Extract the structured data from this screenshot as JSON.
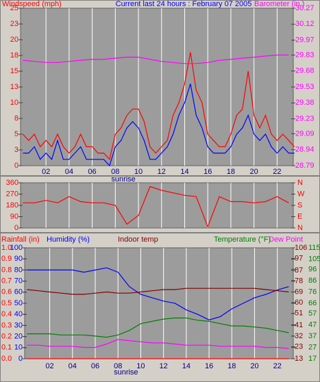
{
  "chart_data": [
    {
      "type": "line",
      "title": "Current last 24 hours : February 07 2005",
      "ylabel": "Windspeed (mph)",
      "y2label": "Barometer (in.)",
      "axis_colors": {
        "y": "#ff0000",
        "y2": "#ff00ff"
      },
      "xlim": [
        -0.2,
        23.4
      ],
      "xticks": [
        {
          "value": 2,
          "label": "02"
        },
        {
          "value": 4,
          "label": "04"
        },
        {
          "value": 6,
          "label": "06"
        },
        {
          "value": 8,
          "label": "08"
        },
        {
          "value": 10,
          "label": "10"
        },
        {
          "value": 12,
          "label": "12"
        },
        {
          "value": 14,
          "label": "14"
        },
        {
          "value": 16,
          "label": "16"
        },
        {
          "value": 18,
          "label": "18"
        },
        {
          "value": 20,
          "label": "20"
        },
        {
          "value": 22,
          "label": "22"
        }
      ],
      "ylim": [
        0,
        25
      ],
      "yticks": [
        0,
        {
          "value": 2.5,
          "label": "3"
        },
        5,
        {
          "value": 7.5,
          "label": "8"
        },
        10,
        {
          "value": 12.5,
          "label": "13"
        },
        15,
        {
          "value": 17.5,
          "label": "18"
        },
        20,
        {
          "value": 22.5,
          "label": "23"
        },
        25
      ],
      "y2lim": [
        28.79,
        30.27
      ],
      "y2ticks": [
        28.79,
        28.94,
        29.09,
        29.23,
        29.38,
        29.53,
        29.68,
        29.83,
        29.97,
        30.12,
        30.27
      ],
      "annotations": [
        {
          "text": "sunrise",
          "x": 8.7
        }
      ],
      "series": [
        {
          "color": "#ff0000",
          "axis": "y",
          "x": [
            0,
            0.5,
            1,
            1.5,
            2,
            2.5,
            3,
            3.5,
            4,
            4.5,
            5,
            5.5,
            6,
            6.5,
            7,
            7.5,
            8,
            8.5,
            9,
            9.5,
            10,
            10.5,
            11,
            11.5,
            12,
            12.5,
            13,
            13.5,
            14,
            14.5,
            15,
            15.5,
            16,
            16.5,
            17,
            17.5,
            18,
            18.5,
            19,
            19.5,
            20,
            20.5,
            21,
            21.5,
            22,
            22.5,
            23,
            23.5
          ],
          "values": [
            5,
            4,
            5,
            3,
            4,
            3,
            5,
            3,
            2,
            3,
            5,
            3,
            3,
            2,
            2,
            1,
            5,
            6,
            8,
            9,
            9,
            7,
            3,
            2,
            3,
            4,
            8,
            10,
            13,
            18,
            12,
            10,
            5,
            4,
            3,
            3,
            5,
            8,
            9,
            15,
            8,
            6,
            8,
            5,
            4,
            5,
            4,
            3
          ]
        },
        {
          "color": "#0000ff",
          "axis": "y",
          "x": [
            0,
            0.5,
            1,
            1.5,
            2,
            2.5,
            3,
            3.5,
            4,
            4.5,
            5,
            5.5,
            6,
            6.5,
            7,
            7.5,
            8,
            8.5,
            9,
            9.5,
            10,
            10.5,
            11,
            11.5,
            12,
            12.5,
            13,
            13.5,
            14,
            14.5,
            15,
            15.5,
            16,
            16.5,
            17,
            17.5,
            18,
            18.5,
            19,
            19.5,
            20,
            20.5,
            21,
            21.5,
            22,
            22.5,
            23,
            23.5
          ],
          "values": [
            2,
            2,
            3,
            1,
            2,
            1,
            4,
            1,
            1,
            2,
            3,
            1,
            1,
            1,
            1,
            0,
            3,
            4,
            6,
            7,
            6,
            4,
            1,
            1,
            2,
            3,
            5,
            8,
            10,
            13,
            8,
            6,
            3,
            2,
            2,
            2,
            3,
            5,
            6,
            8,
            5,
            4,
            5,
            3,
            2,
            3,
            2,
            2
          ]
        },
        {
          "color": "#ff00ff",
          "axis": "y2",
          "x": [
            0,
            1,
            2,
            3,
            4,
            5,
            6,
            7,
            8,
            9,
            10,
            11,
            12,
            13,
            14,
            15,
            16,
            17,
            18,
            19,
            20,
            21,
            22,
            23
          ],
          "values": [
            29.78,
            29.77,
            29.76,
            29.76,
            29.77,
            29.78,
            29.79,
            29.79,
            29.8,
            29.81,
            29.81,
            29.79,
            29.77,
            29.76,
            29.75,
            29.75,
            29.76,
            29.78,
            29.79,
            29.8,
            29.81,
            29.82,
            29.83,
            29.83
          ]
        }
      ]
    },
    {
      "type": "line",
      "axis_colors": {
        "y": "#ff0000",
        "y2": "#ff0000"
      },
      "xlim": [
        -0.2,
        23.4
      ],
      "xticks": [
        2,
        4,
        6,
        8,
        10,
        12,
        14,
        16,
        18,
        20,
        22
      ],
      "ylim": [
        0,
        360
      ],
      "yticks": [
        0,
        90,
        180,
        270,
        360
      ],
      "y2lim": [
        0,
        360
      ],
      "y2ticks": [
        {
          "value": 0,
          "label": "N"
        },
        {
          "value": 90,
          "label": "E"
        },
        {
          "value": 180,
          "label": "S"
        },
        {
          "value": 270,
          "label": "W"
        },
        {
          "value": 360,
          "label": "N"
        }
      ],
      "series": [
        {
          "color": "#ff0000",
          "axis": "y",
          "x": [
            0,
            1,
            2,
            3,
            4,
            5,
            6,
            7,
            8,
            9,
            10,
            11,
            12,
            13,
            14,
            15,
            16,
            17,
            18,
            19,
            20,
            21,
            22,
            23
          ],
          "values": [
            200,
            200,
            220,
            200,
            250,
            210,
            200,
            200,
            180,
            30,
            100,
            330,
            300,
            280,
            260,
            250,
            10,
            250,
            210,
            210,
            200,
            210,
            250,
            200
          ]
        }
      ]
    },
    {
      "type": "line",
      "axis_colors": {
        "y": "#ff0000",
        "y2": "#0000ff",
        "y3": "#800000",
        "y4": "#008000"
      },
      "xlim": [
        -0.2,
        23.4
      ],
      "xticks": [
        {
          "value": 2,
          "label": "02"
        },
        {
          "value": 4,
          "label": "04"
        },
        {
          "value": 6,
          "label": "06"
        },
        {
          "value": 8,
          "label": "08"
        },
        {
          "value": 10,
          "label": "10"
        },
        {
          "value": 12,
          "label": "12"
        },
        {
          "value": 14,
          "label": "14"
        },
        {
          "value": 16,
          "label": "16"
        },
        {
          "value": 18,
          "label": "18"
        },
        {
          "value": 20,
          "label": "20"
        },
        {
          "value": 22,
          "label": "22"
        }
      ],
      "ylim": [
        0,
        1
      ],
      "yticks": [
        {
          "value": 0,
          "label": "0.0"
        },
        0.1,
        0.2,
        0.3,
        0.4,
        0.5,
        0.6,
        0.7,
        0.8,
        0.9,
        {
          "value": 1,
          "label": "1.0"
        }
      ],
      "y2lim": [
        0,
        100
      ],
      "y2ticks": [
        0,
        10,
        20,
        30,
        40,
        50,
        60,
        70,
        80,
        90,
        100
      ],
      "y3lim": [
        13,
        106
      ],
      "y3ticks": [
        13,
        23,
        32,
        41,
        51,
        60,
        69,
        78,
        87,
        97,
        106
      ],
      "y4lim": [
        17,
        115
      ],
      "y4ticks": [
        17,
        27,
        37,
        47,
        57,
        66,
        76,
        86,
        96,
        105,
        115
      ],
      "annotations": [
        {
          "text": "sunrise",
          "x": 8.7
        }
      ],
      "series": [
        {
          "name": "Rainfall (in)",
          "color": "#ff0000",
          "axis": "y",
          "x": [
            0,
            1,
            2,
            3,
            4,
            5,
            6,
            7,
            8,
            9,
            10,
            11,
            12,
            13,
            14,
            15,
            16,
            17,
            18,
            19,
            20,
            21,
            22,
            23
          ],
          "values": [
            0,
            0,
            0,
            0,
            0,
            0,
            0,
            0,
            0,
            0,
            0,
            0,
            0,
            0,
            0,
            0,
            0,
            0,
            0,
            0,
            0,
            0,
            0,
            0
          ]
        },
        {
          "name": "Humidity (%)",
          "color": "#0000ff",
          "axis": "y2",
          "x": [
            0,
            1,
            2,
            3,
            4,
            5,
            6,
            7,
            8,
            9,
            10,
            11,
            12,
            13,
            14,
            15,
            16,
            17,
            18,
            19,
            20,
            21,
            22,
            23
          ],
          "values": [
            80,
            80,
            80,
            80,
            80,
            78,
            80,
            82,
            78,
            65,
            58,
            55,
            52,
            50,
            44,
            40,
            35,
            38,
            45,
            50,
            55,
            58,
            62,
            65
          ]
        },
        {
          "name": "Indoor temp",
          "color": "#800000",
          "axis": "y3",
          "x": [
            0,
            1,
            2,
            3,
            4,
            5,
            6,
            7,
            8,
            9,
            10,
            11,
            12,
            13,
            14,
            15,
            16,
            17,
            18,
            19,
            20,
            21,
            22,
            23
          ],
          "values": [
            71,
            70,
            69,
            68,
            67,
            67,
            68,
            69,
            68,
            68,
            69,
            70,
            71,
            71,
            72,
            72,
            72,
            72,
            72,
            72,
            72,
            71,
            70,
            69
          ]
        },
        {
          "name": "Temperature (°F)",
          "color": "#008000",
          "axis": "y4",
          "x": [
            0,
            1,
            2,
            3,
            4,
            5,
            6,
            7,
            8,
            9,
            10,
            11,
            12,
            13,
            14,
            15,
            16,
            17,
            18,
            19,
            20,
            21,
            22,
            23
          ],
          "values": [
            39,
            39,
            39,
            38,
            38,
            38,
            37,
            36,
            38,
            42,
            48,
            50,
            52,
            53,
            53,
            51,
            50,
            48,
            46,
            46,
            45,
            44,
            42,
            40
          ]
        },
        {
          "name": "Dew Point",
          "color": "#ff00ff",
          "axis": "y4",
          "x": [
            0,
            1,
            2,
            3,
            4,
            5,
            6,
            7,
            8,
            9,
            10,
            11,
            12,
            13,
            14,
            15,
            16,
            17,
            18,
            19,
            20,
            21,
            22,
            23
          ],
          "values": [
            29,
            29,
            28,
            28,
            28,
            27,
            27,
            30,
            34,
            33,
            32,
            31,
            31,
            30,
            29,
            29,
            29,
            28,
            28,
            28,
            28,
            27,
            27,
            26
          ]
        }
      ]
    }
  ]
}
